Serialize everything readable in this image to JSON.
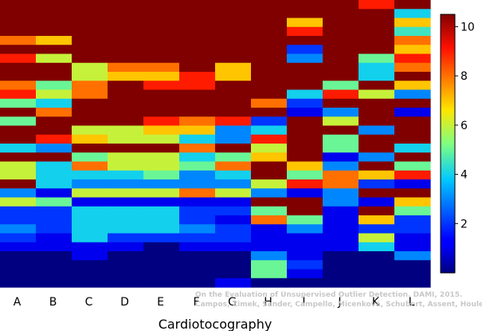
{
  "chart_data": {
    "type": "heatmap",
    "title": "",
    "xlabel": "Cardiotocography",
    "ylabel": "",
    "categories": [
      "A",
      "B",
      "C",
      "D",
      "E",
      "F",
      "G",
      "H",
      "I",
      "J",
      "K",
      "L"
    ],
    "colorbar": {
      "min": 0,
      "max": 10.5,
      "ticks": [
        2,
        4,
        6,
        8,
        10
      ]
    },
    "grid": false,
    "rows": 32,
    "values": [
      [
        10.5,
        10.5,
        10.5,
        10.5,
        10.5,
        10.5,
        10.5,
        10.5,
        10.5,
        10.5,
        9.0,
        10.5
      ],
      [
        10.5,
        10.5,
        10.5,
        10.5,
        10.5,
        10.5,
        10.5,
        10.5,
        10.5,
        10.5,
        10.5,
        4.0
      ],
      [
        10.5,
        10.5,
        10.5,
        10.5,
        10.5,
        10.5,
        10.5,
        10.5,
        7.0,
        10.5,
        10.5,
        7.0
      ],
      [
        10.5,
        10.5,
        10.5,
        10.5,
        10.5,
        10.5,
        10.5,
        10.5,
        9.0,
        10.5,
        10.5,
        4.5
      ],
      [
        8.0,
        7.0,
        10.5,
        10.5,
        10.5,
        10.5,
        10.5,
        10.5,
        10.5,
        10.5,
        10.5,
        8.0
      ],
      [
        10.5,
        10.5,
        10.5,
        10.5,
        10.5,
        10.5,
        10.5,
        10.5,
        2.0,
        10.5,
        10.5,
        7.0
      ],
      [
        9.0,
        6.0,
        10.5,
        10.5,
        10.5,
        10.5,
        10.5,
        10.5,
        3.0,
        10.5,
        5.0,
        9.0
      ],
      [
        10.5,
        10.5,
        6.0,
        8.0,
        8.0,
        10.5,
        7.0,
        10.5,
        10.5,
        10.5,
        4.0,
        8.0
      ],
      [
        10.5,
        10.5,
        6.0,
        7.0,
        7.0,
        9.0,
        7.0,
        10.5,
        10.5,
        10.5,
        4.0,
        10.5
      ],
      [
        8.0,
        5.0,
        8.0,
        10.5,
        9.0,
        9.0,
        10.5,
        10.5,
        10.5,
        5.0,
        10.5,
        7.0
      ],
      [
        9.0,
        6.0,
        8.0,
        10.5,
        10.5,
        10.5,
        10.5,
        10.5,
        4.0,
        9.0,
        6.0,
        3.0
      ],
      [
        5.0,
        4.0,
        10.5,
        10.5,
        10.5,
        10.5,
        10.5,
        8.0,
        2.0,
        10.5,
        10.5,
        10.5
      ],
      [
        10.5,
        8.0,
        10.5,
        10.5,
        10.5,
        10.5,
        10.5,
        10.5,
        1.0,
        3.0,
        10.5,
        1.0
      ],
      [
        5.0,
        10.5,
        10.5,
        10.5,
        9.0,
        8.0,
        9.0,
        2.0,
        10.5,
        6.0,
        10.5,
        10.5
      ],
      [
        10.5,
        10.5,
        6.0,
        6.0,
        7.0,
        7.0,
        3.0,
        4.0,
        10.5,
        10.5,
        3.0,
        10.5
      ],
      [
        10.5,
        9.0,
        7.0,
        6.0,
        6.0,
        4.0,
        3.0,
        9.0,
        10.5,
        5.0,
        10.5,
        10.5
      ],
      [
        4.0,
        3.0,
        10.5,
        10.5,
        10.5,
        8.0,
        10.5,
        6.0,
        10.5,
        5.0,
        10.5,
        4.0
      ],
      [
        10.5,
        10.5,
        5.0,
        6.0,
        6.0,
        4.0,
        5.0,
        7.0,
        10.5,
        1.0,
        3.0,
        10.5
      ],
      [
        6.0,
        4.0,
        8.0,
        6.0,
        6.0,
        5.0,
        8.0,
        10.5,
        7.0,
        3.0,
        10.5,
        5.0
      ],
      [
        6.0,
        4.0,
        4.0,
        4.0,
        5.0,
        3.0,
        4.0,
        10.5,
        5.0,
        8.0,
        7.0,
        9.0
      ],
      [
        10.5,
        4.0,
        3.0,
        3.0,
        3.0,
        3.0,
        3.0,
        6.0,
        9.0,
        8.0,
        2.0,
        1.0
      ],
      [
        3.0,
        1.0,
        6.0,
        6.0,
        6.0,
        8.0,
        6.0,
        3.0,
        1.0,
        3.0,
        10.5,
        10.5
      ],
      [
        6.0,
        5.0,
        1.0,
        1.0,
        1.0,
        1.0,
        1.0,
        10.5,
        10.5,
        3.0,
        1.0,
        7.0
      ],
      [
        2.0,
        2.0,
        4.0,
        4.0,
        4.0,
        2.0,
        2.0,
        5.0,
        10.5,
        1.0,
        10.5,
        5.0
      ],
      [
        2.0,
        2.0,
        4.0,
        4.0,
        4.0,
        2.0,
        1.0,
        8.0,
        5.0,
        1.0,
        7.0,
        2.0
      ],
      [
        3.0,
        2.0,
        4.0,
        4.0,
        4.0,
        3.0,
        2.0,
        1.0,
        3.0,
        1.0,
        2.0,
        2.0
      ],
      [
        2.0,
        1.0,
        4.0,
        2.0,
        2.0,
        2.0,
        2.0,
        1.0,
        1.0,
        1.0,
        6.0,
        1.0
      ],
      [
        1.0,
        1.0,
        1.0,
        1.0,
        0.0,
        1.0,
        1.0,
        1.0,
        1.0,
        1.0,
        4.0,
        1.0
      ],
      [
        0.0,
        0.0,
        1.0,
        0.0,
        0.0,
        0.0,
        0.0,
        3.0,
        1.0,
        0.0,
        0.0,
        3.0
      ],
      [
        0.0,
        0.0,
        0.0,
        0.0,
        0.0,
        0.0,
        0.0,
        5.0,
        2.0,
        0.0,
        0.0,
        0.0
      ],
      [
        0.0,
        0.0,
        0.0,
        0.0,
        0.0,
        0.0,
        0.0,
        5.0,
        1.0,
        0.0,
        0.0,
        0.0
      ],
      [
        0.0,
        0.0,
        0.0,
        0.0,
        0.0,
        0.0,
        1.0,
        0.0,
        0.0,
        0.0,
        0.0,
        0.0
      ]
    ]
  },
  "credit": {
    "line1": "On the Evaluation of Unsupervised Outlier Detection. DAMI, 2015.",
    "line2": "Campos, Zimek, Sander, Campello, Micenková, Schubert, Assent, Houle"
  }
}
